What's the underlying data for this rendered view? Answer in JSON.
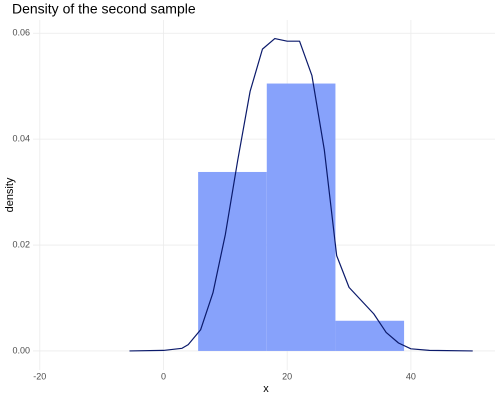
{
  "chart_data": {
    "type": "histogram",
    "title": "Density of the second sample",
    "x_label": "x",
    "y_label": "density",
    "bins": [
      5.6,
      16.7,
      27.8,
      38.9
    ],
    "values": [
      0.0338,
      0.0505,
      0.0057
    ],
    "color": "#87a2fb",
    "density": {
      "color": "#0b1a6b",
      "x": [
        -5.5,
        0,
        3,
        4,
        6,
        8,
        10,
        12,
        14,
        16,
        18,
        20,
        22,
        24,
        26,
        28,
        30,
        32,
        34,
        36,
        38,
        40,
        43,
        50
      ],
      "y": [
        0,
        0.0001,
        0.0005,
        0.0012,
        0.004,
        0.011,
        0.022,
        0.036,
        0.049,
        0.057,
        0.059,
        0.0585,
        0.0585,
        0.052,
        0.038,
        0.018,
        0.012,
        0.0095,
        0.007,
        0.0035,
        0.0015,
        0.0004,
        0.0001,
        0
      ]
    },
    "xlim": [
      -21.1,
      53.6
    ],
    "ylim": [
      -0.0036,
      0.0625
    ],
    "xticks": [
      -20,
      0,
      20,
      40
    ],
    "yticks": [
      {
        "value": 0,
        "label": "0.00"
      },
      {
        "value": 0.02,
        "label": "0.02"
      },
      {
        "value": 0.04,
        "label": "0.04"
      },
      {
        "value": 0.06,
        "label": "0.06"
      }
    ],
    "grid": true
  }
}
